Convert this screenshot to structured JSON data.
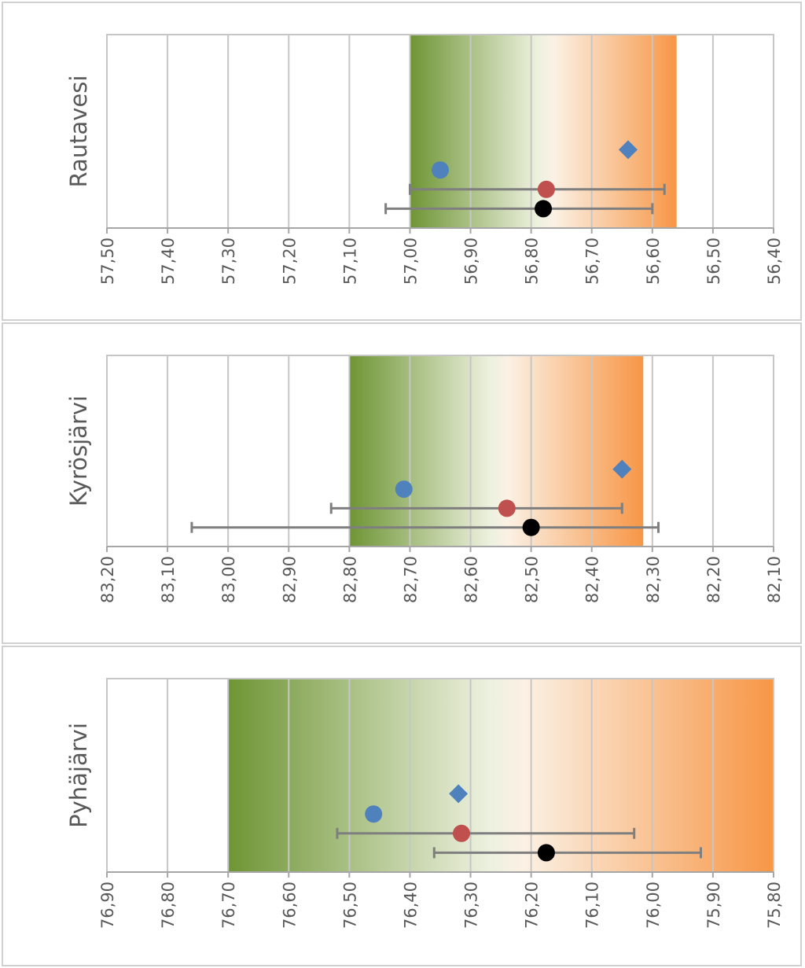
{
  "chart_data": [
    {
      "type": "scatter",
      "panel_name": "Rautavesi",
      "ylabel": "Rautavesi",
      "x_axis_reversed": true,
      "xlim": [
        57.5,
        56.4
      ],
      "ticks": [
        57.5,
        57.4,
        57.3,
        57.2,
        57.1,
        57.0,
        56.9,
        56.8,
        56.7,
        56.6,
        56.5,
        56.4
      ],
      "tick_labels": [
        "57,50",
        "57,40",
        "57,30",
        "57,20",
        "57,10",
        "57,00",
        "56,90",
        "56,80",
        "56,70",
        "56,60",
        "56,50",
        "56,40"
      ],
      "band": {
        "from": 57.0,
        "to": 56.56
      },
      "points": {
        "blue_circle": {
          "x": 56.95,
          "level": 3
        },
        "blue_diamond": {
          "x": 56.64,
          "level": 4
        },
        "red_circle": {
          "x": 56.775,
          "level": 2,
          "error": [
            57.0,
            56.58
          ]
        },
        "black_circle": {
          "x": 56.78,
          "level": 1,
          "error": [
            57.04,
            56.6
          ]
        }
      }
    },
    {
      "type": "scatter",
      "panel_name": "Kyrösjärvi",
      "ylabel": "Kyrösjärvi",
      "x_axis_reversed": true,
      "xlim": [
        83.2,
        82.1
      ],
      "ticks": [
        83.2,
        83.1,
        83.0,
        82.9,
        82.8,
        82.7,
        82.6,
        82.5,
        82.4,
        82.3,
        82.2,
        82.1
      ],
      "tick_labels": [
        "83,20",
        "83,10",
        "83,00",
        "82,90",
        "82,80",
        "82,70",
        "82,60",
        "82,50",
        "82,40",
        "82,30",
        "82,20",
        "82,10"
      ],
      "band": {
        "from": 82.8,
        "to": 82.315
      },
      "points": {
        "blue_circle": {
          "x": 82.71,
          "level": 3
        },
        "blue_diamond": {
          "x": 82.35,
          "level": 4
        },
        "red_circle": {
          "x": 82.54,
          "level": 2,
          "error": [
            82.83,
            82.35
          ]
        },
        "black_circle": {
          "x": 82.5,
          "level": 1,
          "error": [
            83.06,
            82.29
          ]
        }
      }
    },
    {
      "type": "scatter",
      "panel_name": "Pyhäjärvi",
      "ylabel": "Pyhäjärvi",
      "x_axis_reversed": true,
      "xlim": [
        76.9,
        75.8
      ],
      "ticks": [
        76.9,
        76.8,
        76.7,
        76.6,
        76.5,
        76.4,
        76.3,
        76.2,
        76.1,
        76.0,
        75.9,
        75.8
      ],
      "tick_labels": [
        "76,90",
        "76,80",
        "76,70",
        "76,60",
        "76,50",
        "76,40",
        "76,30",
        "76,20",
        "76,10",
        "76,00",
        "75,90",
        "75,80"
      ],
      "band": {
        "from": 76.7,
        "to": 75.8
      },
      "points": {
        "blue_circle": {
          "x": 76.46,
          "level": 3
        },
        "blue_diamond": {
          "x": 76.32,
          "level": 4
        },
        "red_circle": {
          "x": 76.315,
          "level": 2,
          "error": [
            76.52,
            76.03
          ]
        },
        "black_circle": {
          "x": 76.175,
          "level": 1,
          "error": [
            76.36,
            75.92
          ]
        }
      }
    }
  ],
  "colors": {
    "band_green": "#6e9535",
    "band_mid": "#edf1df",
    "band_light": "#fbf1e4",
    "band_orange": "#f79646",
    "grid": "#c6c6c6",
    "axis": "#a6a6a6",
    "text": "#595959",
    "blue_marker": "#4f81bd",
    "red_marker": "#c0504d",
    "black_marker": "#000000",
    "error_bar": "#7f7f7f"
  }
}
